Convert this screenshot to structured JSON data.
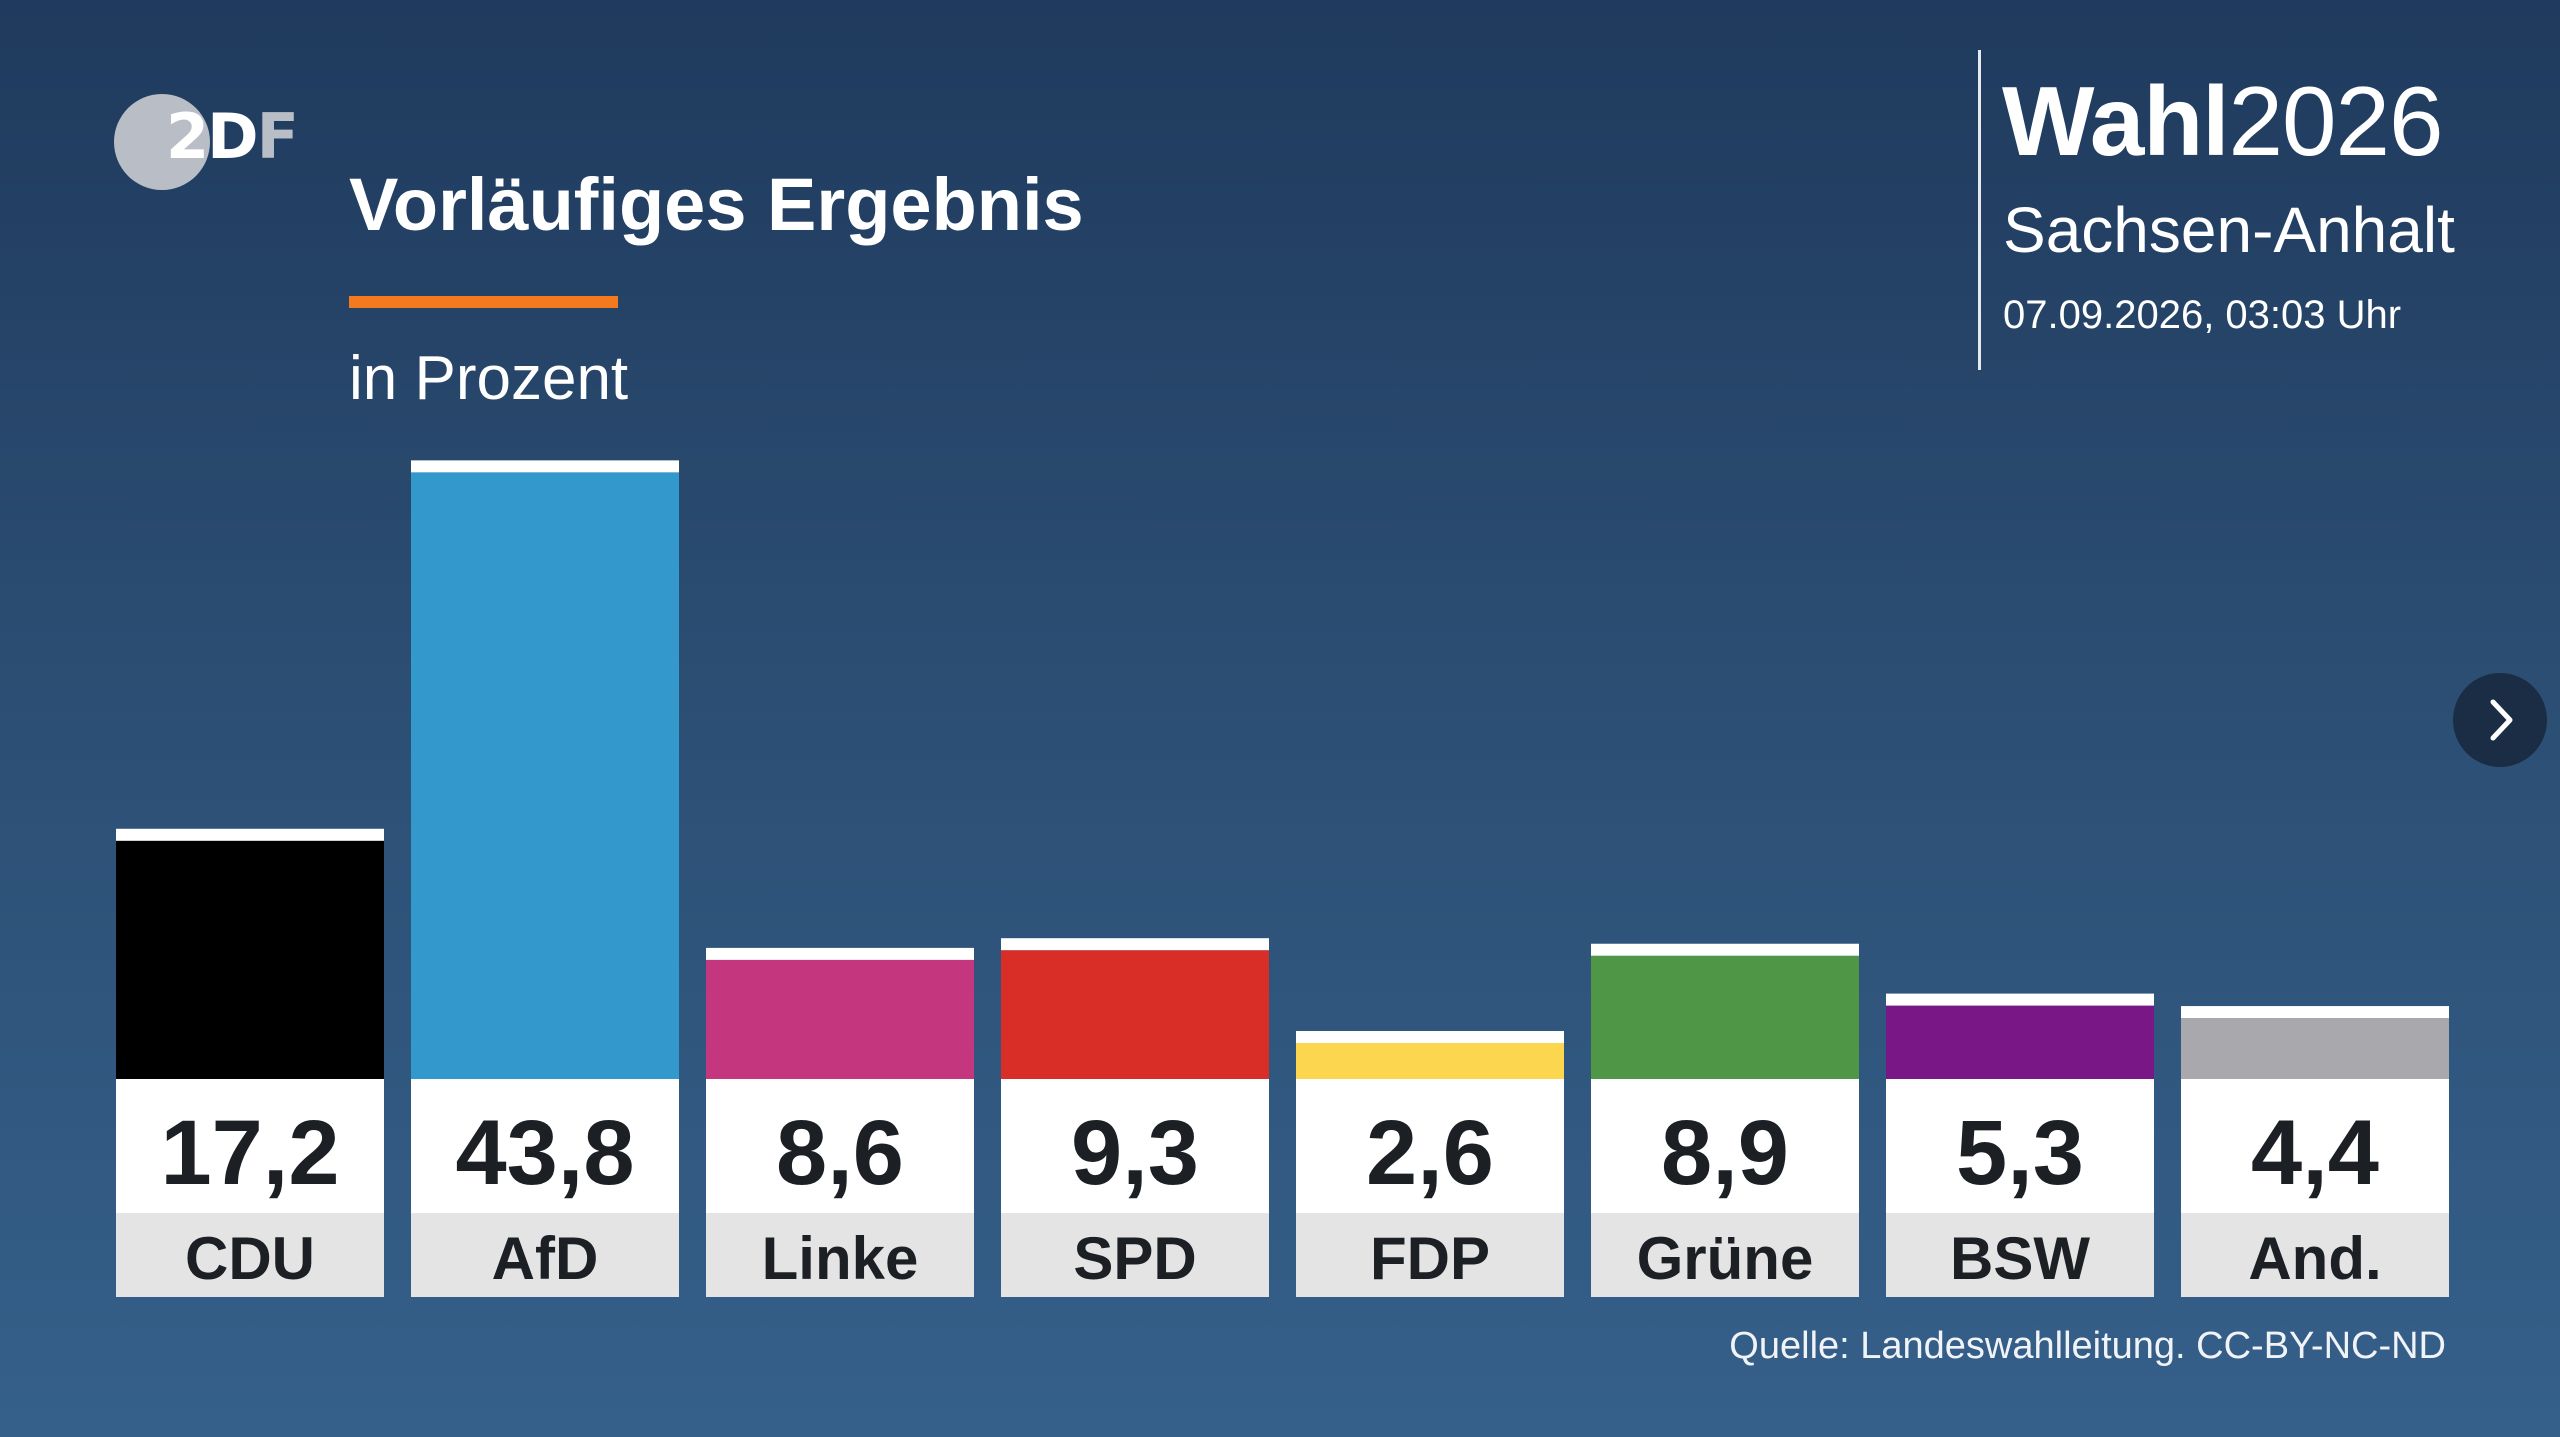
{
  "logo": {
    "text_main": "2D",
    "text_tail": "F"
  },
  "header": {
    "brand_bold": "Wahl",
    "brand_regular": "2026",
    "region": "Sachsen-Anhalt",
    "timestamp": "07.09.2026, 03:03 Uhr"
  },
  "colors": {
    "accent": "#f47a20",
    "value_box": "#ffffff",
    "label_box": "#e4e4e4"
  },
  "icons": {
    "next": "chevron-right-icon"
  },
  "chart_data": {
    "type": "bar",
    "title": "Vorläufiges Ergebnis",
    "subtitle": "in Prozent",
    "categories": [
      "CDU",
      "AfD",
      "Linke",
      "SPD",
      "FDP",
      "Grüne",
      "BSW",
      "And."
    ],
    "values": [
      17.2,
      43.8,
      8.6,
      9.3,
      2.6,
      8.9,
      5.3,
      4.4
    ],
    "value_labels": [
      "17,2",
      "43,8",
      "8,6",
      "9,3",
      "2,6",
      "8,9",
      "5,3",
      "4,4"
    ],
    "colors": [
      "#000000",
      "#3399cc",
      "#c4377f",
      "#d92d27",
      "#fdd64f",
      "#4f9747",
      "#7a1787",
      "#a8a8ad"
    ],
    "legend": "none",
    "grid": false
  },
  "footer": {
    "source": "Quelle: Landeswahlleitung. CC-BY-NC-ND"
  }
}
